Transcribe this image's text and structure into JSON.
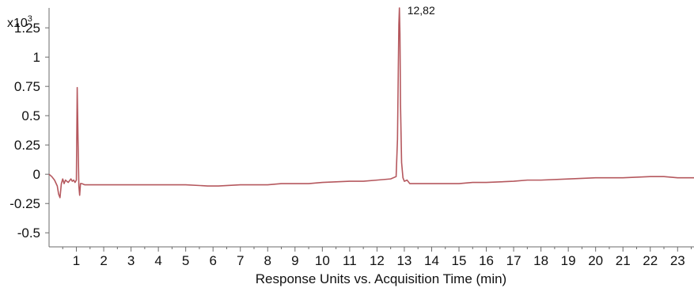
{
  "chart_data": {
    "type": "line",
    "title": "",
    "xlabel": "Response Units vs. Acquisition Time (min)",
    "ylabel": "",
    "y_multiplier": {
      "base": "x10",
      "exponent": "3"
    },
    "xlim": [
      0,
      23.6
    ],
    "ylim": [
      -0.62,
      1.42
    ],
    "x_ticks": [
      1,
      2,
      3,
      4,
      5,
      6,
      7,
      8,
      9,
      10,
      11,
      12,
      13,
      14,
      15,
      16,
      17,
      18,
      19,
      20,
      21,
      22,
      23
    ],
    "x_tick_labels": [
      "1",
      "2",
      "3",
      "4",
      "5",
      "6",
      "7",
      "8",
      "9",
      "10",
      "11",
      "12",
      "13",
      "14",
      "15",
      "16",
      "17",
      "18",
      "19",
      "20",
      "21",
      "22",
      "23"
    ],
    "y_ticks": [
      1.25,
      1,
      0.75,
      0.5,
      0.25,
      0,
      -0.25,
      -0.5
    ],
    "y_tick_labels": [
      "1.25",
      "1",
      "0.75",
      "0.5",
      "0.25",
      "0",
      "-0.25",
      "-0.5"
    ],
    "grid": false,
    "legend": "none",
    "line_color": "#b5585e",
    "series": [
      {
        "x": [
          0,
          0.1,
          0.2,
          0.3,
          0.35,
          0.4,
          0.45,
          0.5,
          0.55,
          0.6,
          0.7,
          0.8,
          0.85,
          0.9,
          0.95,
          1.0,
          1.03,
          1.06,
          1.09,
          1.12,
          1.15,
          1.2,
          1.3,
          1.5,
          2,
          3,
          4,
          5,
          5.8,
          6.2,
          7,
          8,
          8.5,
          9,
          9.5,
          10,
          11,
          11.5,
          12,
          12.5,
          12.7,
          12.75,
          12.78,
          12.8,
          12.82,
          12.84,
          12.86,
          12.9,
          12.95,
          13.0,
          13.1,
          13.2,
          13.5,
          14,
          15,
          15.5,
          16,
          17,
          17.5,
          18,
          19,
          20,
          21,
          22,
          22.5,
          23,
          23.6
        ],
        "y": [
          0,
          -0.02,
          -0.05,
          -0.1,
          -0.17,
          -0.2,
          -0.08,
          -0.04,
          -0.08,
          -0.05,
          -0.07,
          -0.04,
          -0.06,
          -0.05,
          -0.07,
          -0.05,
          0.74,
          0.3,
          -0.1,
          -0.18,
          -0.08,
          -0.08,
          -0.09,
          -0.09,
          -0.09,
          -0.09,
          -0.09,
          -0.09,
          -0.1,
          -0.1,
          -0.09,
          -0.09,
          -0.08,
          -0.08,
          -0.08,
          -0.07,
          -0.06,
          -0.06,
          -0.05,
          -0.04,
          -0.02,
          0.3,
          0.9,
          1.28,
          1.42,
          1.2,
          0.6,
          0.1,
          -0.03,
          -0.06,
          -0.05,
          -0.08,
          -0.08,
          -0.08,
          -0.08,
          -0.07,
          -0.07,
          -0.06,
          -0.05,
          -0.05,
          -0.04,
          -0.03,
          -0.03,
          -0.02,
          -0.02,
          -0.03,
          -0.03
        ]
      }
    ],
    "annotations": [
      {
        "text": "12,82",
        "x": 12.82,
        "y": 1.42
      }
    ]
  }
}
